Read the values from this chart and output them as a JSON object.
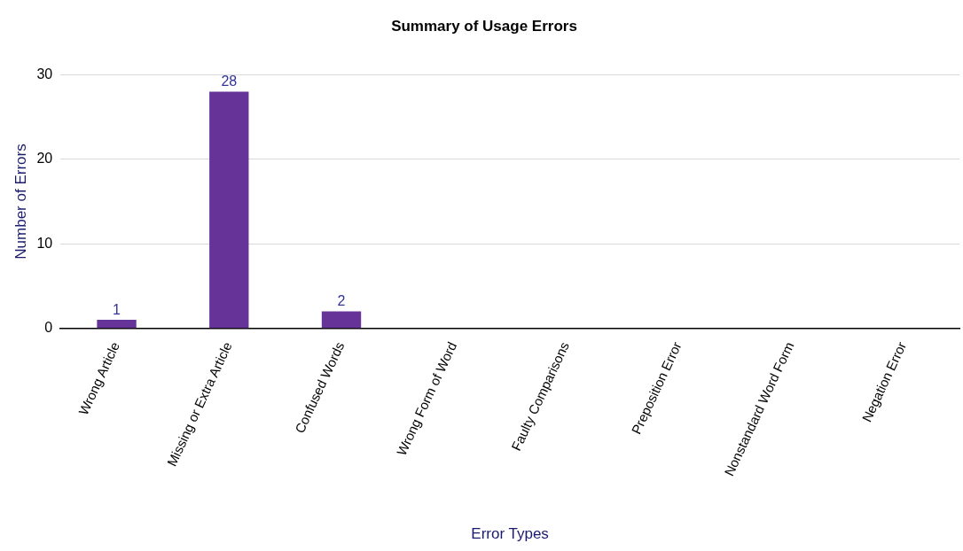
{
  "chart_data": {
    "type": "bar",
    "title": "Summary of Usage Errors",
    "xlabel": "Error Types",
    "ylabel": "Number of Errors",
    "categories": [
      "Wrong Article",
      "Missing or Extra Article",
      "Confused Words",
      "Wrong Form of Word",
      "Faulty Comparisons",
      "Preposition Error",
      "Nonstandard Word Form",
      "Negation Error"
    ],
    "values": [
      1,
      28,
      2,
      0,
      0,
      0,
      0,
      0
    ],
    "value_labels": [
      "1",
      "28",
      "2",
      null,
      null,
      null,
      null,
      null
    ],
    "color": "#663399",
    "ylim": [
      0,
      30
    ],
    "yticks": [
      0,
      10,
      20,
      30
    ],
    "grid": "y",
    "legend": false
  }
}
